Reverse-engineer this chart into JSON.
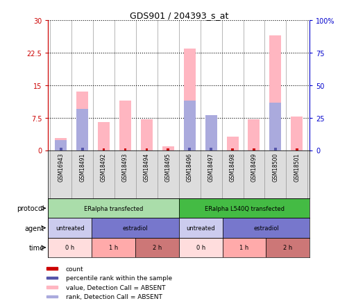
{
  "title": "GDS901 / 204393_s_at",
  "samples": [
    "GSM16943",
    "GSM18491",
    "GSM18492",
    "GSM18493",
    "GSM18494",
    "GSM18495",
    "GSM18496",
    "GSM18497",
    "GSM18498",
    "GSM18499",
    "GSM18500",
    "GSM18501"
  ],
  "pink_bars": [
    2.8,
    13.5,
    6.5,
    11.5,
    7.2,
    0.9,
    23.5,
    8.1,
    3.2,
    7.2,
    26.5,
    7.8
  ],
  "blue_bars": [
    2.3,
    9.5,
    0.0,
    0.0,
    0.0,
    0.0,
    11.5,
    8.1,
    0.0,
    0.0,
    11.0,
    0.0
  ],
  "red_small": [
    0.4,
    0.4,
    0.4,
    0.4,
    0.4,
    0.4,
    0.4,
    0.4,
    0.4,
    0.4,
    0.4,
    0.4
  ],
  "blue_small": [
    0.5,
    0.5,
    0.0,
    0.0,
    0.0,
    0.0,
    0.5,
    0.5,
    0.0,
    0.0,
    0.5,
    0.0
  ],
  "ylim_left": [
    0,
    30
  ],
  "ylim_right": [
    0,
    100
  ],
  "yticks_left": [
    0,
    7.5,
    15,
    22.5,
    30
  ],
  "yticks_right": [
    0,
    25,
    50,
    75,
    100
  ],
  "ytick_labels_left": [
    "0",
    "7.5",
    "15",
    "22.5",
    "30"
  ],
  "ytick_labels_right": [
    "0",
    "25",
    "50",
    "75",
    "100%"
  ],
  "color_pink_bar": "#FFB6C1",
  "color_blue_bar": "#AAAADD",
  "color_red_small": "#CC0000",
  "color_blue_small": "#5555AA",
  "protocol_row": [
    {
      "label": "ERalpha transfected",
      "start": 0,
      "end": 6,
      "color": "#AADDAA"
    },
    {
      "label": "ERalpha L540Q transfected",
      "start": 6,
      "end": 12,
      "color": "#44BB44"
    }
  ],
  "agent_row": [
    {
      "label": "untreated",
      "start": 0,
      "end": 2,
      "color": "#CCCCEE"
    },
    {
      "label": "estradiol",
      "start": 2,
      "end": 6,
      "color": "#7777CC"
    },
    {
      "label": "untreated",
      "start": 6,
      "end": 8,
      "color": "#CCCCEE"
    },
    {
      "label": "estradiol",
      "start": 8,
      "end": 12,
      "color": "#7777CC"
    }
  ],
  "time_row": [
    {
      "label": "0 h",
      "start": 0,
      "end": 2,
      "color": "#FFDDDD"
    },
    {
      "label": "1 h",
      "start": 2,
      "end": 4,
      "color": "#FFAAAA"
    },
    {
      "label": "2 h",
      "start": 4,
      "end": 6,
      "color": "#CC7777"
    },
    {
      "label": "0 h",
      "start": 6,
      "end": 8,
      "color": "#FFDDDD"
    },
    {
      "label": "1 h",
      "start": 8,
      "end": 10,
      "color": "#FFAAAA"
    },
    {
      "label": "2 h",
      "start": 10,
      "end": 12,
      "color": "#CC7777"
    }
  ],
  "legend_items": [
    {
      "label": "count",
      "color": "#CC0000"
    },
    {
      "label": "percentile rank within the sample",
      "color": "#5555AA"
    },
    {
      "label": "value, Detection Call = ABSENT",
      "color": "#FFB6C1"
    },
    {
      "label": "rank, Detection Call = ABSENT",
      "color": "#AAAADD"
    }
  ],
  "row_labels": [
    "protocol",
    "agent",
    "time"
  ],
  "background_color": "#FFFFFF",
  "left_axis_color": "#CC0000",
  "right_axis_color": "#0000CC",
  "sample_bg_color": "#DDDDDD"
}
